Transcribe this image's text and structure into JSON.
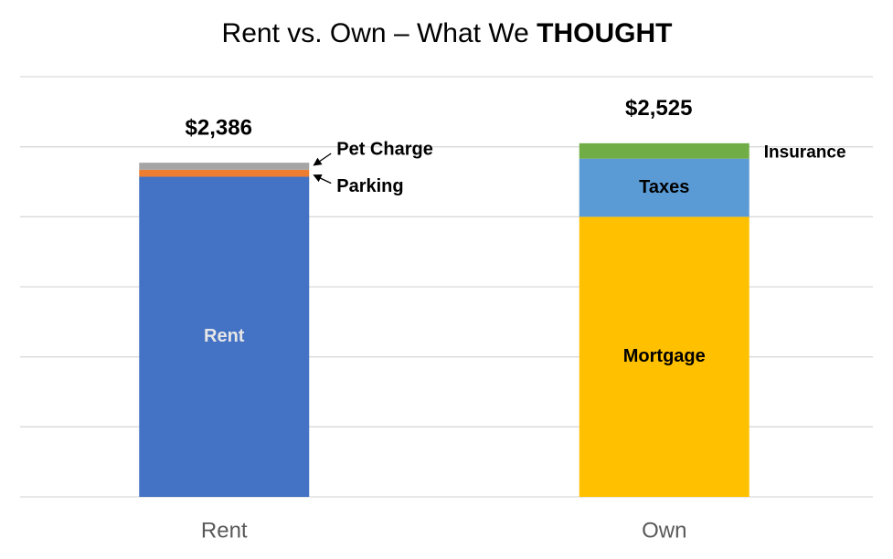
{
  "chart_data": {
    "type": "stacked-bar",
    "title": [
      "Rent vs. Own – What We",
      "THOUGHT"
    ],
    "categories": [
      "Rent",
      "Own"
    ],
    "series": [
      {
        "name": "Rent",
        "color": "#4472c4",
        "values": [
          2286,
          null
        ]
      },
      {
        "name": "Parking",
        "color": "#ed7d31",
        "values": [
          50,
          null
        ]
      },
      {
        "name": "Pet Charge",
        "color": "#a5a5a5",
        "values": [
          50,
          null
        ]
      },
      {
        "name": "Mortgage",
        "color": "#ffc000",
        "values": [
          null,
          2000
        ]
      },
      {
        "name": "Taxes",
        "color": "#5b9bd5",
        "values": [
          null,
          415
        ]
      },
      {
        "name": "Insurance",
        "color": "#70ad47",
        "values": [
          null,
          110
        ]
      }
    ],
    "totals": [
      2386,
      2525
    ],
    "total_labels": [
      "$2,386",
      "$2,525"
    ],
    "ylim": [
      0,
      3000
    ],
    "yticks": [
      0,
      500,
      1000,
      1500,
      2000,
      2500,
      3000
    ],
    "grid": true
  }
}
